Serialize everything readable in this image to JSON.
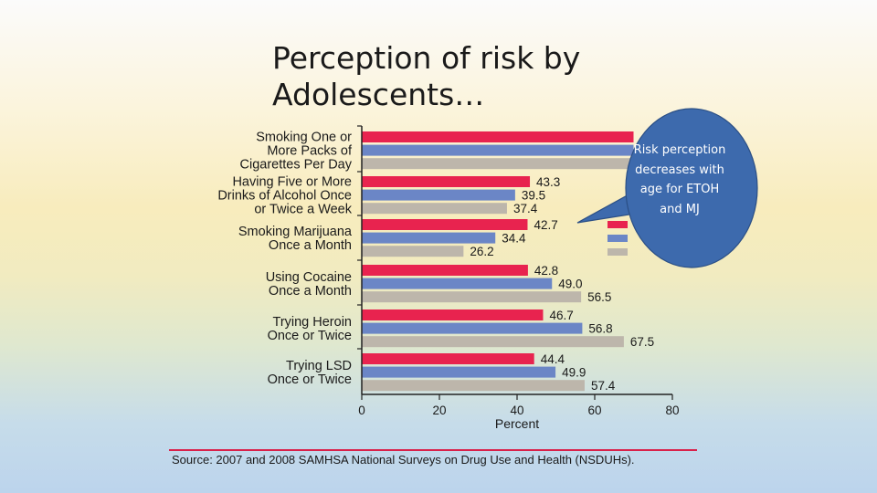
{
  "slide": {
    "title_line1": "Perception of risk by",
    "title_line2": "Adolescents…",
    "callout": "Risk perception decreases with age for ETOH and MJ"
  },
  "colors": {
    "series1": "#e8234f",
    "series2": "#6b86c6",
    "series3": "#bdb6ab",
    "callout_fill": "#3d6aad",
    "callout_stroke": "#2b4f85",
    "accent_rule": "#d9214a"
  },
  "chart_data": {
    "type": "bar",
    "orientation": "horizontal",
    "categories": [
      [
        "Smoking One or",
        "More Packs of",
        "Cigarettes Per Day"
      ],
      [
        "Having Five or More",
        "Drinks of Alcohol Once",
        "or Twice a Week"
      ],
      [
        "Smoking Marijuana",
        "Once a Month"
      ],
      [
        "Using Cocaine",
        "Once a Month"
      ],
      [
        "Trying Heroin",
        "Once or Twice"
      ],
      [
        "Trying LSD",
        "Once or Twice"
      ]
    ],
    "series": [
      {
        "values": [
          70,
          43.3,
          42.7,
          42.8,
          46.7,
          44.4
        ],
        "labels": [
          null,
          "43.3",
          "42.7",
          "42.8",
          "46.7",
          "44.4"
        ]
      },
      {
        "values": [
          70,
          39.5,
          34.4,
          49.0,
          56.8,
          49.9
        ],
        "labels": [
          null,
          "39.5",
          "34.4",
          "49.0",
          "56.8",
          "49.9"
        ]
      },
      {
        "values": [
          70,
          37.4,
          26.2,
          56.5,
          67.5,
          57.4
        ],
        "labels": [
          null,
          "37.4",
          "26.2",
          "56.5",
          "67.5",
          "57.4"
        ]
      }
    ],
    "xlabel": "Percent",
    "xlim": [
      0,
      80
    ],
    "xticks": [
      "0",
      "20",
      "40",
      "60",
      "80"
    ],
    "source": "Source: 2007 and 2008 SAMHSA National Surveys on Drug Use and Health (NSDUHs)."
  }
}
